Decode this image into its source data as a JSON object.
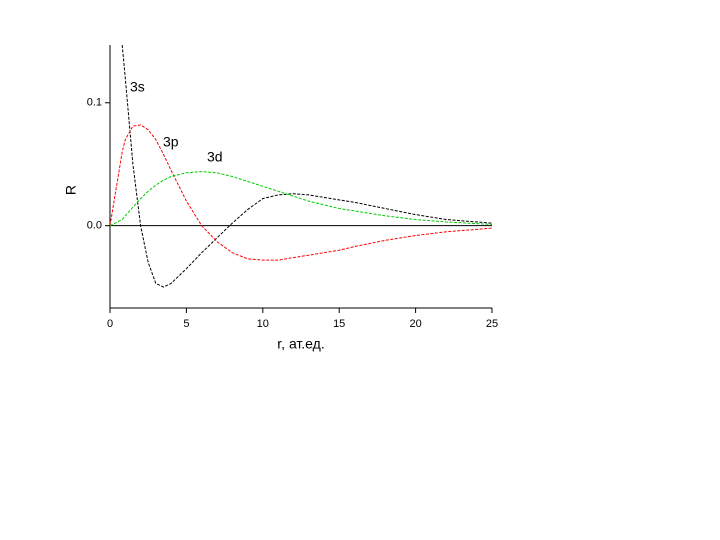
{
  "chart_data": {
    "type": "line",
    "y_label": "R",
    "x_label": "r, ат.ед.",
    "x": [
      0,
      0.8,
      1,
      1.5,
      2,
      2.5,
      3,
      3.5,
      4,
      5,
      6,
      7,
      8,
      9,
      10,
      11,
      12,
      13,
      14,
      15,
      16,
      18,
      20,
      22,
      25
    ],
    "series": [
      {
        "name": "3s",
        "color": "#000000",
        "values": [
          null,
          0.147,
          0.12,
          0.05,
          0.0,
          -0.03,
          -0.047,
          -0.05,
          -0.047,
          -0.035,
          -0.022,
          -0.01,
          0.002,
          0.013,
          0.022,
          0.025,
          0.026,
          0.025,
          0.023,
          0.021,
          0.019,
          0.014,
          0.009,
          0.005,
          0.002
        ]
      },
      {
        "name": "3p",
        "color": "#ff0000",
        "values": [
          0,
          0.06,
          0.07,
          0.081,
          0.082,
          0.078,
          0.07,
          0.058,
          0.045,
          0.02,
          0.0,
          -0.013,
          -0.022,
          -0.027,
          -0.028,
          -0.028,
          -0.026,
          -0.024,
          -0.022,
          -0.02,
          -0.017,
          -0.012,
          -0.008,
          -0.005,
          -0.002
        ]
      },
      {
        "name": "3d",
        "color": "#00cc00",
        "values": [
          0,
          0.005,
          0.008,
          0.015,
          0.022,
          0.028,
          0.033,
          0.037,
          0.04,
          0.043,
          0.044,
          0.043,
          0.04,
          0.036,
          0.032,
          0.028,
          0.024,
          0.02,
          0.017,
          0.014,
          0.012,
          0.008,
          0.005,
          0.003,
          0.001
        ]
      }
    ],
    "xlim": [
      0,
      25
    ],
    "xticks": [
      0,
      5,
      10,
      15,
      20,
      25
    ],
    "ylim": [
      -0.067,
      0.147
    ],
    "yticks": [
      {
        "value": 0,
        "label": "0.0"
      },
      {
        "value": 0.1,
        "label": "0.1"
      }
    ]
  }
}
